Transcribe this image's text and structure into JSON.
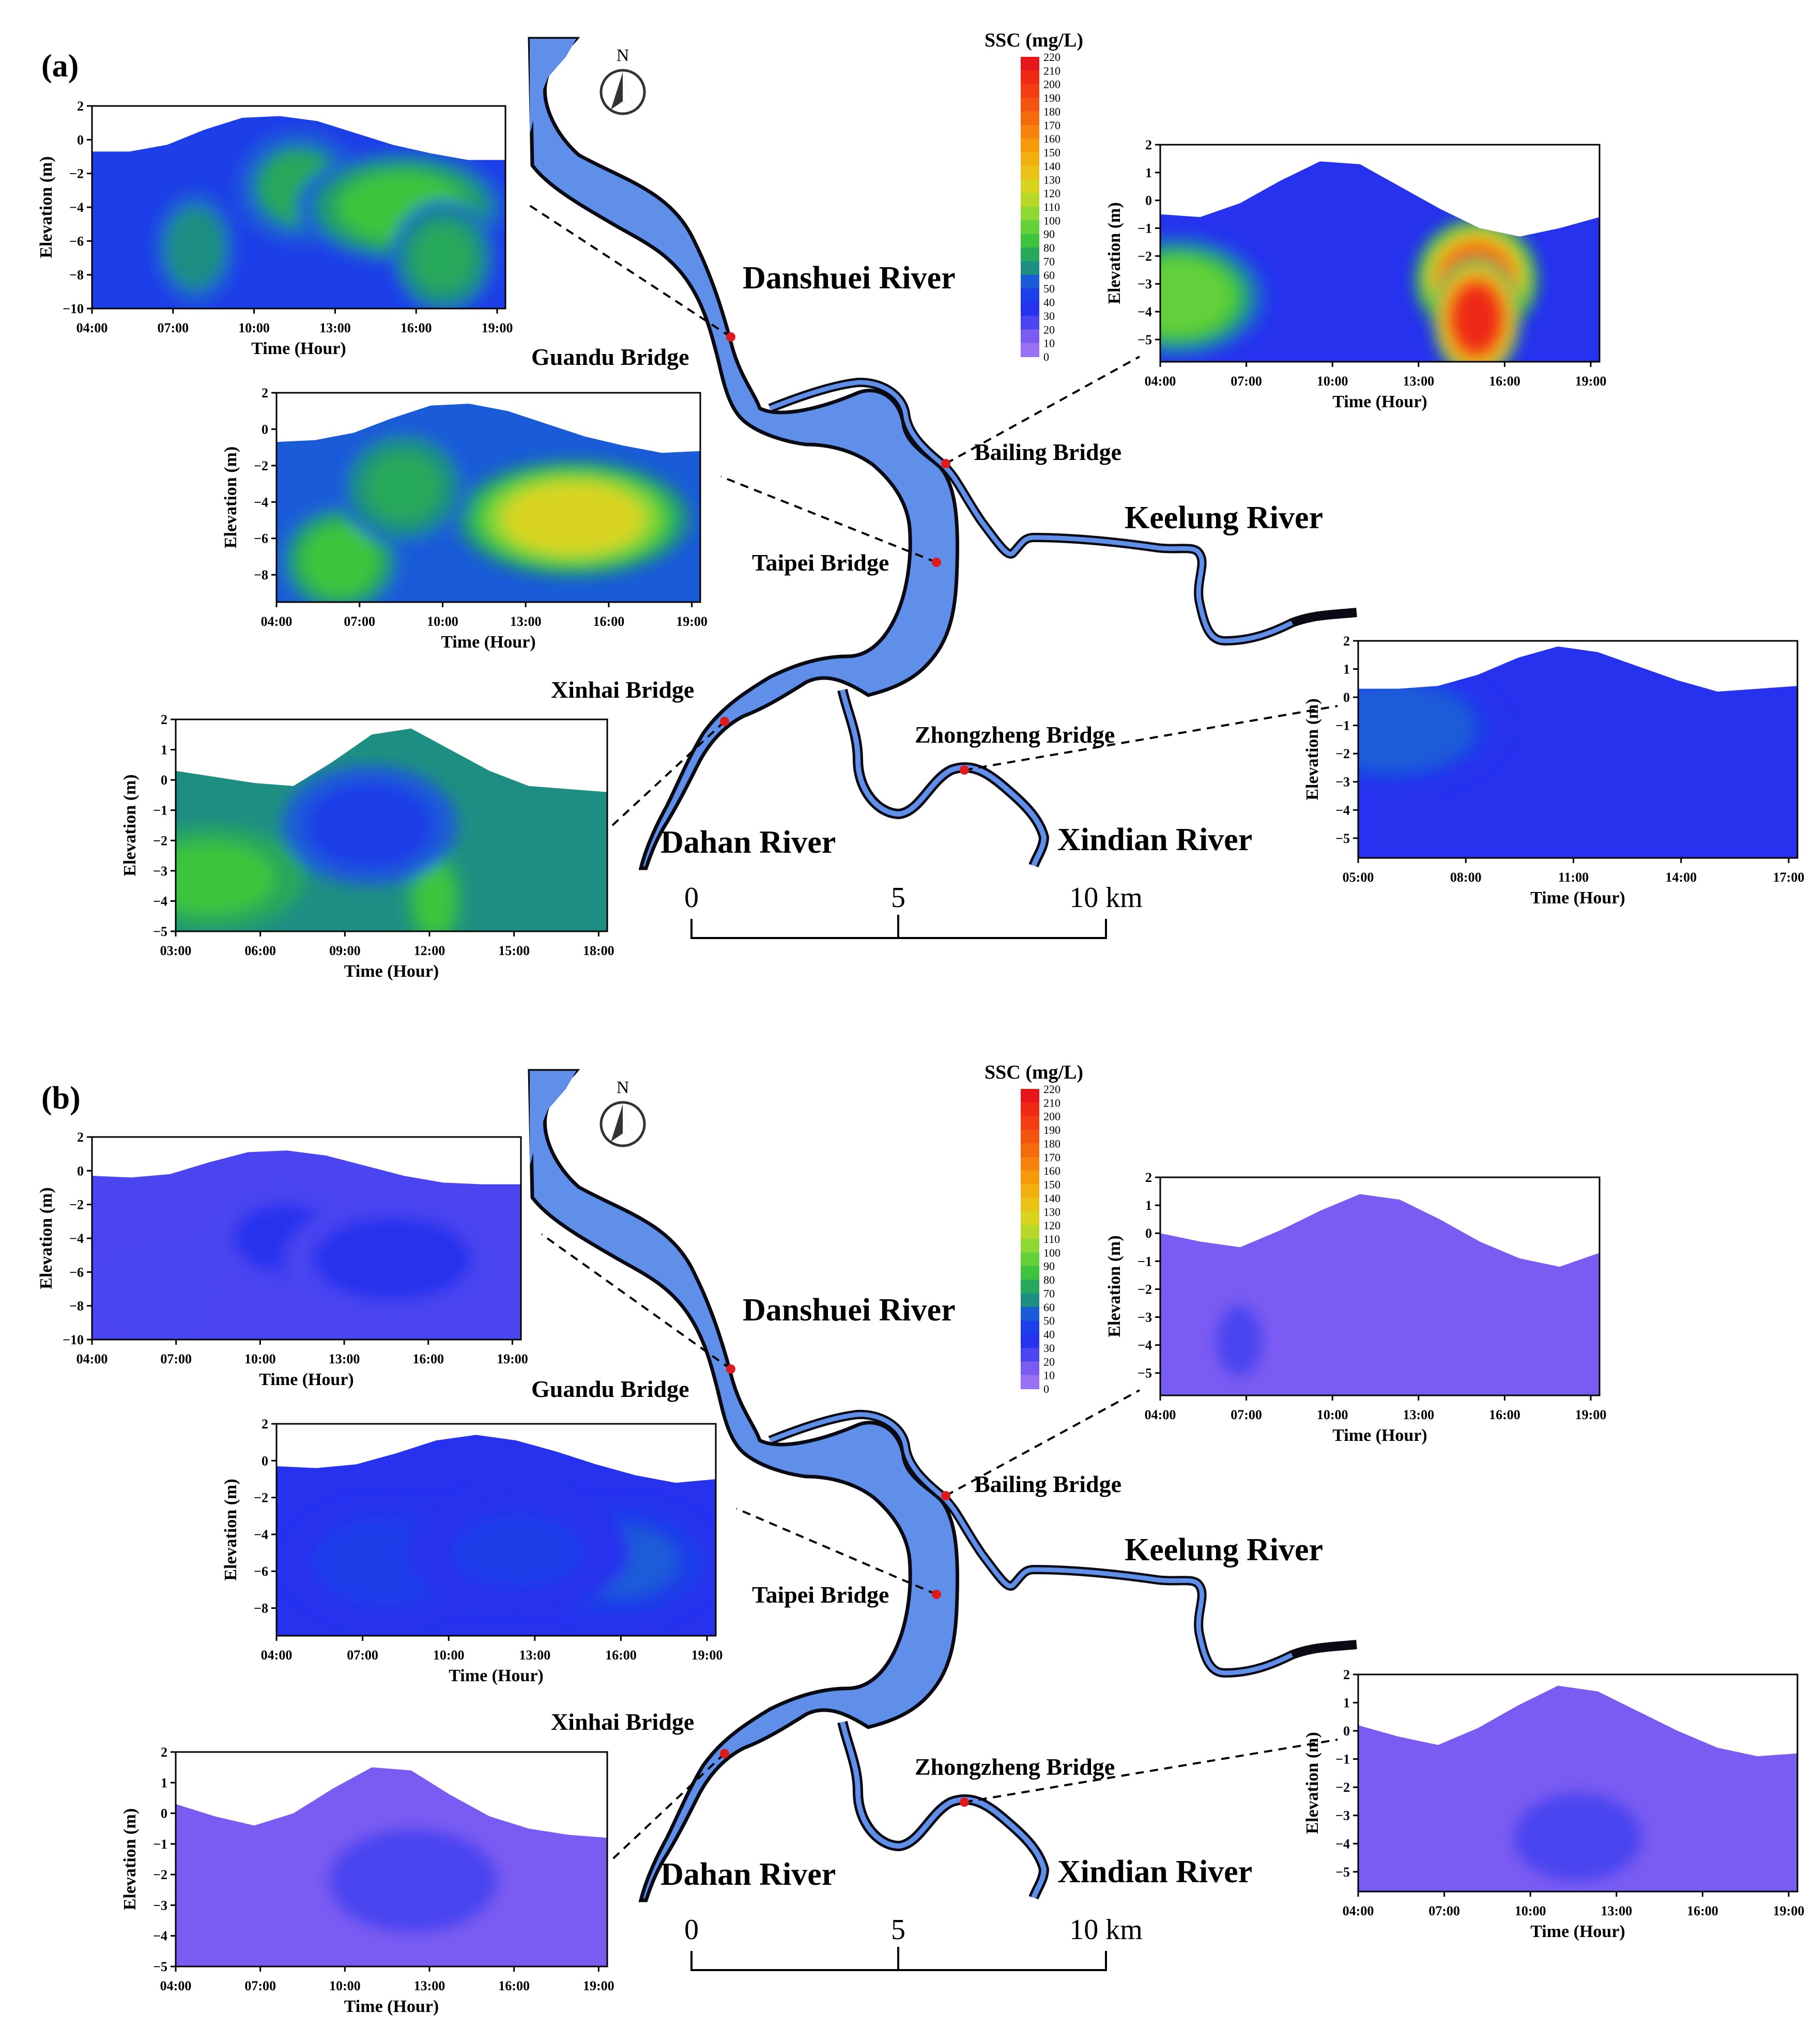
{
  "colorbar": {
    "title": "SSC (mg/L)",
    "ticks": [
      220,
      210,
      200,
      190,
      180,
      170,
      160,
      150,
      140,
      130,
      120,
      110,
      100,
      90,
      80,
      70,
      60,
      50,
      40,
      30,
      20,
      10,
      0
    ],
    "colors": [
      "#e8161b",
      "#ee2a14",
      "#f23e12",
      "#f45410",
      "#f66a0e",
      "#f7820c",
      "#f79a0a",
      "#f2b010",
      "#e9c416",
      "#d9d420",
      "#b8d82a",
      "#8fd834",
      "#64d03a",
      "#3ec43c",
      "#28a85a",
      "#1f8e82",
      "#1a5bd8",
      "#1d3ee8",
      "#2632ee",
      "#4a45f0",
      "#7a5cf2",
      "#9a70f4"
    ]
  },
  "labels": {
    "north": "N",
    "scale": {
      "zero": "0",
      "mid": "5",
      "end": "10 km"
    }
  },
  "chart_data": [
    {
      "panel": "(a)",
      "type": "heatmap",
      "map": {
        "rivers": [
          "Danshuei River",
          "Keelung River",
          "Dahan River",
          "Xindian River"
        ],
        "bridges": [
          "Guandu Bridge",
          "Bailing Bridge",
          "Taipei Bridge",
          "Xinhai Bridge",
          "Zhongzheng Bridge"
        ]
      },
      "sections": [
        {
          "bridge": "Guandu Bridge",
          "xlabel": "Time (Hour)",
          "ylabel": "Elevation (m)",
          "xticks": [
            "04:00",
            "07:00",
            "10:00",
            "13:00",
            "16:00",
            "19:00"
          ],
          "yticks": [
            "2",
            "0",
            "−2",
            "−4",
            "−6",
            "−8",
            "−10"
          ],
          "ylim": [
            -10,
            2
          ],
          "surface": [
            -0.7,
            -0.7,
            -0.3,
            0.6,
            1.3,
            1.4,
            1.1,
            0.4,
            -0.3,
            -0.8,
            -1.2,
            -1.2
          ],
          "base_ssc": 45,
          "blobs": [
            [
              0.5,
              0.4,
              12,
              0.3,
              70
            ],
            [
              0.75,
              0.5,
              14,
              0.5,
              80
            ],
            [
              0.85,
              0.75,
              10,
              0.25,
              78
            ],
            [
              0.25,
              0.7,
              9,
              0.2,
              65
            ]
          ]
        },
        {
          "bridge": "Bailing Bridge",
          "xlabel": "Time (Hour)",
          "ylabel": "Elevation (m)",
          "xticks": [
            "04:00",
            "07:00",
            "10:00",
            "13:00",
            "16:00",
            "19:00"
          ],
          "yticks": [
            "2",
            "1",
            "0",
            "−1",
            "−2",
            "−3",
            "−4",
            "−5"
          ],
          "ylim": [
            -5.8,
            2
          ],
          "surface": [
            -0.5,
            -0.6,
            -0.1,
            0.7,
            1.4,
            1.3,
            0.5,
            -0.3,
            -1.0,
            -1.3,
            -1.0,
            -0.6
          ],
          "base_ssc": 38,
          "blobs": [
            [
              0.72,
              0.62,
              22,
              0.28,
              175
            ],
            [
              0.72,
              0.8,
              22,
              0.2,
              205
            ],
            [
              0.04,
              0.7,
              6,
              0.4,
              95
            ]
          ]
        },
        {
          "bridge": "Taipei Bridge",
          "xlabel": "Time (Hour)",
          "ylabel": "Elevation (m)",
          "xticks": [
            "04:00",
            "07:00",
            "10:00",
            "13:00",
            "16:00",
            "19:00"
          ],
          "yticks": [
            "2",
            "0",
            "−2",
            "−4",
            "−6",
            "−8"
          ],
          "ylim": [
            -9.5,
            2
          ],
          "surface": [
            -0.7,
            -0.6,
            -0.2,
            0.6,
            1.3,
            1.4,
            1.0,
            0.3,
            -0.4,
            -0.9,
            -1.3,
            -1.2
          ],
          "base_ssc": 50,
          "blobs": [
            [
              0.7,
              0.6,
              16,
              0.55,
              125
            ],
            [
              0.15,
              0.8,
              18,
              0.3,
              80
            ],
            [
              0.3,
              0.45,
              10,
              0.3,
              70
            ]
          ]
        },
        {
          "bridge": "Xinhai Bridge",
          "xlabel": "Time (Hour)",
          "ylabel": "Elevation (m)",
          "xticks": [
            "03:00",
            "06:00",
            "09:00",
            "12:00",
            "15:00",
            "18:00"
          ],
          "yticks": [
            "2",
            "1",
            "0",
            "−1",
            "−2",
            "−3",
            "−4",
            "−5"
          ],
          "ylim": [
            -5,
            2
          ],
          "surface": [
            0.3,
            0.1,
            -0.1,
            -0.2,
            0.6,
            1.5,
            1.7,
            1.0,
            0.3,
            -0.2,
            -0.3,
            -0.4
          ],
          "base_ssc": 60,
          "blobs": [
            [
              0.08,
              0.75,
              12,
              0.5,
              80
            ],
            [
              0.6,
              0.85,
              10,
              0.15,
              80
            ],
            [
              0.45,
              0.5,
              -12,
              0.4,
              42
            ]
          ]
        },
        {
          "bridge": "Zhongzheng Bridge",
          "xlabel": "Time (Hour)",
          "ylabel": "Elevation (m)",
          "xticks": [
            "05:00",
            "08:00",
            "11:00",
            "14:00",
            "17:00"
          ],
          "yticks": [
            "2",
            "1",
            "0",
            "−1",
            "−2",
            "−3",
            "−4",
            "−5"
          ],
          "ylim": [
            -5.7,
            2
          ],
          "surface": [
            0.3,
            0.3,
            0.4,
            0.8,
            1.4,
            1.8,
            1.6,
            1.1,
            0.6,
            0.2,
            0.3,
            0.4
          ],
          "base_ssc": 33,
          "blobs": [
            [
              0.08,
              0.4,
              10,
              0.5,
              58
            ]
          ]
        }
      ]
    },
    {
      "panel": "(b)",
      "type": "heatmap",
      "map": {
        "rivers": [
          "Danshuei River",
          "Keelung River",
          "Dahan River",
          "Xindian River"
        ],
        "bridges": [
          "Guandu Bridge",
          "Bailing Bridge",
          "Taipei Bridge",
          "Xinhai Bridge",
          "Zhongzheng Bridge"
        ]
      },
      "sections": [
        {
          "bridge": "Guandu Bridge",
          "xlabel": "Time (Hour)",
          "ylabel": "Elevation (m)",
          "xticks": [
            "04:00",
            "07:00",
            "10:00",
            "13:00",
            "16:00",
            "19:00"
          ],
          "yticks": [
            "2",
            "0",
            "−2",
            "−4",
            "−6",
            "−8",
            "−10"
          ],
          "ylim": [
            -10,
            2
          ],
          "surface": [
            -0.3,
            -0.4,
            -0.2,
            0.5,
            1.1,
            1.2,
            0.9,
            0.3,
            -0.3,
            -0.7,
            -0.8,
            -0.8
          ],
          "base_ssc": 20,
          "blobs": [
            [
              0.45,
              0.5,
              12,
              0.4,
              33
            ],
            [
              0.7,
              0.6,
              14,
              0.5,
              35
            ],
            [
              0.15,
              0.75,
              8,
              0.3,
              28
            ]
          ]
        },
        {
          "bridge": "Bailing Bridge",
          "xlabel": "Time (Hour)",
          "ylabel": "Elevation (m)",
          "xticks": [
            "04:00",
            "07:00",
            "10:00",
            "13:00",
            "16:00",
            "19:00"
          ],
          "yticks": [
            "2",
            "1",
            "0",
            "−1",
            "−2",
            "−3",
            "−4",
            "−5"
          ],
          "ylim": [
            -5.8,
            2
          ],
          "surface": [
            0.0,
            -0.3,
            -0.5,
            0.1,
            0.8,
            1.4,
            1.2,
            0.5,
            -0.3,
            -0.9,
            -1.2,
            -0.7
          ],
          "base_ssc": 15,
          "blobs": [
            [
              0.18,
              0.75,
              5,
              0.18,
              20
            ]
          ]
        },
        {
          "bridge": "Taipei Bridge",
          "xlabel": "Time (Hour)",
          "ylabel": "Elevation (m)",
          "xticks": [
            "04:00",
            "07:00",
            "10:00",
            "13:00",
            "16:00",
            "19:00"
          ],
          "yticks": [
            "2",
            "0",
            "−2",
            "−4",
            "−6",
            "−8"
          ],
          "ylim": [
            -9.5,
            2
          ],
          "surface": [
            -0.3,
            -0.4,
            -0.2,
            0.4,
            1.1,
            1.4,
            1.1,
            0.5,
            -0.2,
            -0.8,
            -1.2,
            -1.0
          ],
          "base_ssc": 30,
          "blobs": [
            [
              0.25,
              0.65,
              10,
              0.45,
              45
            ],
            [
              0.78,
              0.65,
              10,
              0.45,
              52
            ],
            [
              0.55,
              0.6,
              16,
              0.5,
              40
            ]
          ]
        },
        {
          "bridge": "Xinhai Bridge",
          "xlabel": "Time (Hour)",
          "ylabel": "Elevation (m)",
          "xticks": [
            "04:00",
            "07:00",
            "10:00",
            "13:00",
            "16:00",
            "19:00"
          ],
          "yticks": [
            "2",
            "1",
            "0",
            "−1",
            "−2",
            "−3",
            "−4",
            "−5"
          ],
          "ylim": [
            -5,
            2
          ],
          "surface": [
            0.3,
            -0.1,
            -0.4,
            0.0,
            0.8,
            1.5,
            1.4,
            0.6,
            -0.1,
            -0.5,
            -0.7,
            -0.8
          ],
          "base_ssc": 17,
          "blobs": [
            [
              0.55,
              0.6,
              16,
              0.45,
              26
            ]
          ]
        },
        {
          "bridge": "Zhongzheng Bridge",
          "xlabel": "Time (Hour)",
          "ylabel": "Elevation (m)",
          "xticks": [
            "04:00",
            "07:00",
            "10:00",
            "13:00",
            "16:00",
            "19:00"
          ],
          "yticks": [
            "2",
            "1",
            "0",
            "−1",
            "−2",
            "−3",
            "−4",
            "−5"
          ],
          "ylim": [
            -5.7,
            2
          ],
          "surface": [
            0.2,
            -0.2,
            -0.5,
            0.1,
            0.9,
            1.6,
            1.4,
            0.7,
            0.0,
            -0.6,
            -0.9,
            -0.8
          ],
          "base_ssc": 16,
          "blobs": [
            [
              0.5,
              0.75,
              6,
              0.4,
              22
            ]
          ]
        }
      ]
    }
  ]
}
